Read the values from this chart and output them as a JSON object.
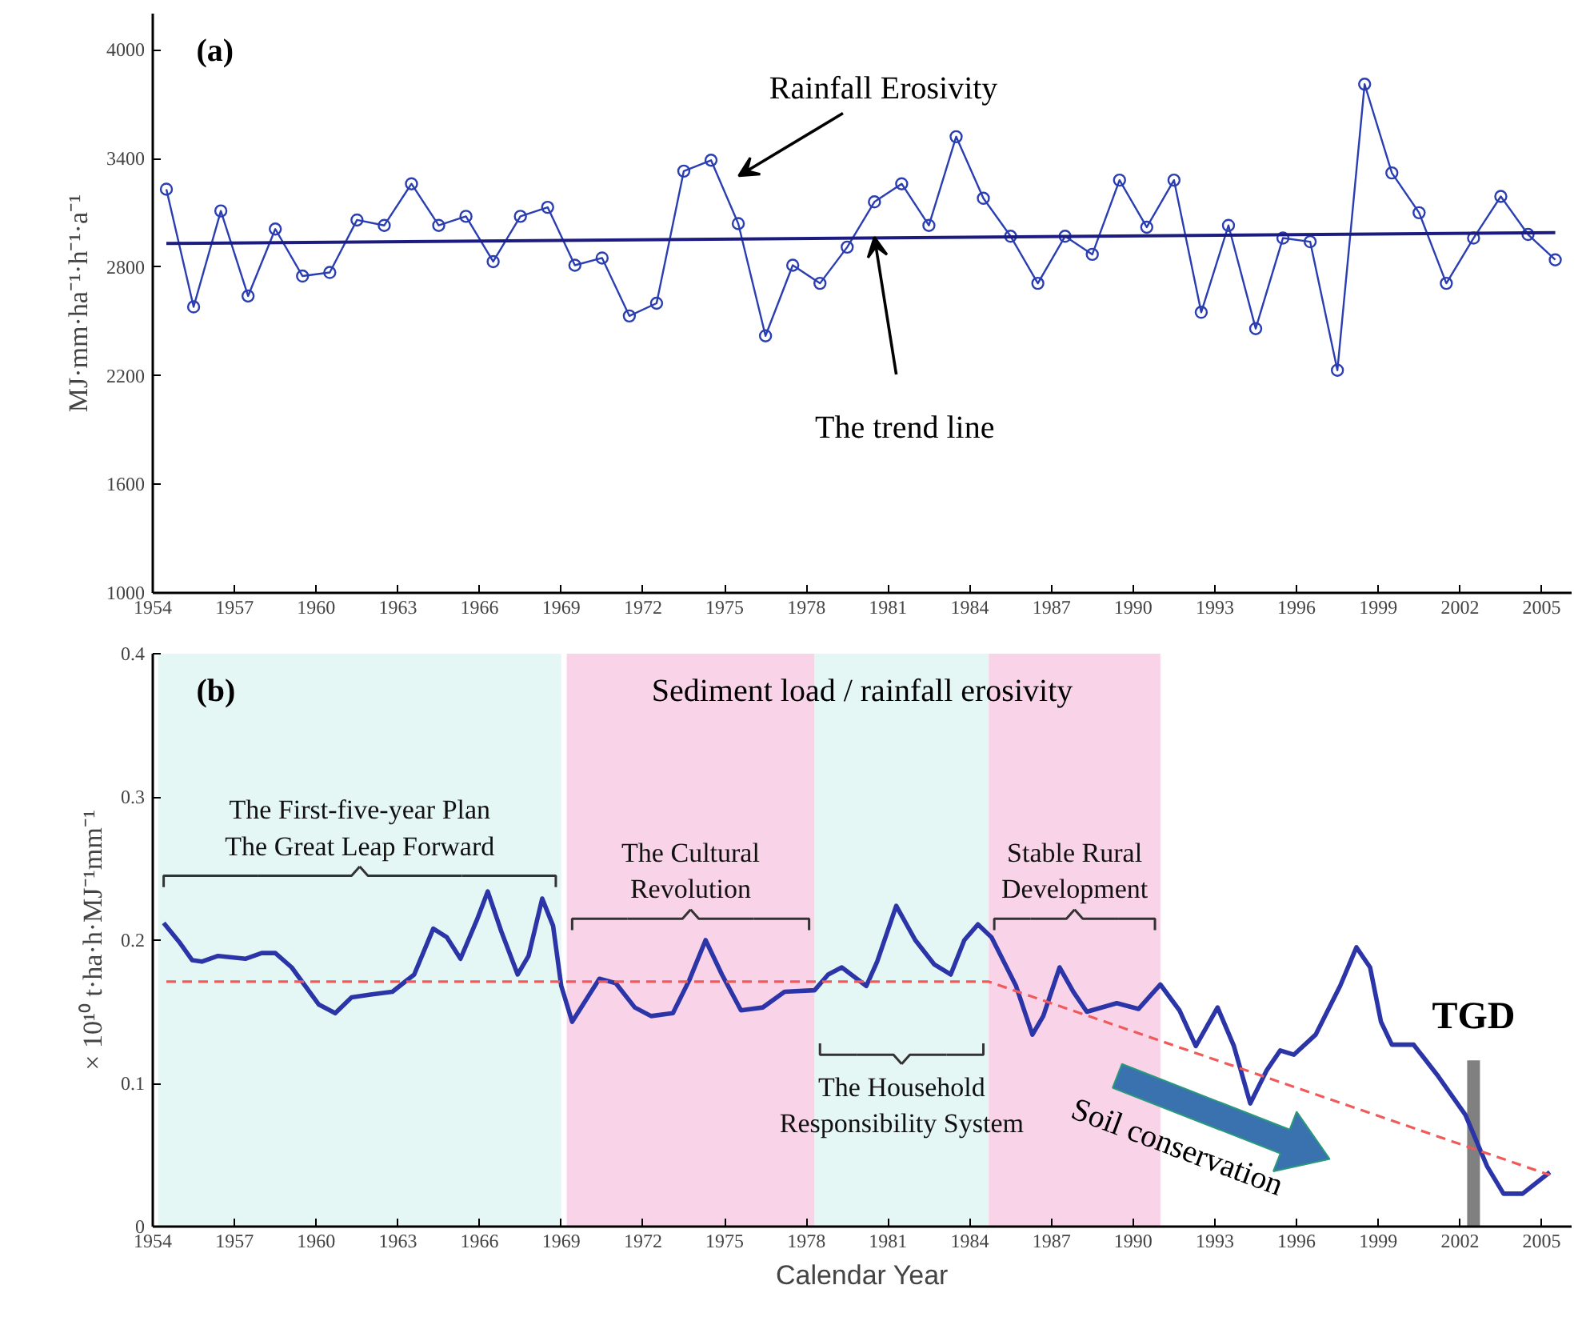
{
  "chart_data": [
    {
      "type": "line",
      "title": "(a)",
      "ylabel": "MJ·mm·ha⁻¹·h⁻¹·a⁻¹",
      "xlim": [
        1954,
        2006.1
      ],
      "ylim": [
        1000,
        4200
      ],
      "xticks": [
        1954,
        1957,
        1960,
        1963,
        1966,
        1969,
        1972,
        1975,
        1978,
        1981,
        1984,
        1987,
        1990,
        1993,
        1996,
        1999,
        2002,
        2005
      ],
      "yticks": [
        1000,
        1600,
        2200,
        2800,
        3400,
        4000
      ],
      "grid": false,
      "series": [
        {
          "marker": "circle",
          "color": "#2a3eb1",
          "x": [
            1954.5,
            1955.5,
            1956.5,
            1957.5,
            1958.5,
            1959.5,
            1960.5,
            1961.5,
            1962.5,
            1963.5,
            1964.5,
            1965.5,
            1966.5,
            1967.5,
            1968.5,
            1969.5,
            1970.5,
            1971.5,
            1972.5,
            1973.5,
            1974.5,
            1975.5,
            1976.5,
            1977.5,
            1978.5,
            1979.5,
            1980.5,
            1981.5,
            1982.5,
            1983.5,
            1984.5,
            1985.5,
            1986.5,
            1987.5,
            1988.5,
            1989.5,
            1990.5,
            1991.5,
            1992.5,
            1993.5,
            1994.5,
            1995.5,
            1996.5,
            1997.5,
            1998.5,
            1999.5,
            2000.5,
            2001.5,
            2002.5,
            2003.5,
            2004.5,
            2005.5
          ],
          "values": [
            3230,
            2580,
            3110,
            2640,
            3010,
            2750,
            2770,
            3060,
            3030,
            3260,
            3030,
            3080,
            2830,
            3080,
            3130,
            2810,
            2850,
            2530,
            2600,
            3330,
            3390,
            3040,
            2420,
            2810,
            2710,
            2910,
            3160,
            3260,
            3030,
            3520,
            3180,
            2970,
            2710,
            2970,
            2870,
            3280,
            3020,
            3280,
            2550,
            3030,
            2460,
            2960,
            2940,
            2230,
            3810,
            3320,
            3100,
            2710,
            2960,
            3190,
            2980,
            2840
          ]
        },
        {
          "marker": "none",
          "color": "#1c1c80",
          "x": [
            1954.5,
            2005.5
          ],
          "values": [
            2930,
            2990
          ]
        }
      ],
      "annotations": [
        "Rainfall Erosivity",
        {
          "text": "The trend line",
          "x": 1980.5,
          "y": 2965
        }
      ]
    },
    {
      "type": "line",
      "title": "(b)",
      "subtitle": "Sediment load / rainfall erosivity",
      "xlabel": "Calendar Year",
      "ylabel": "× 10¹⁰ t·ha·h·MJ⁻¹mm⁻¹",
      "xlim": [
        1954,
        2006.1
      ],
      "ylim": [
        0,
        0.4
      ],
      "xticks": [
        1954,
        1957,
        1960,
        1963,
        1966,
        1969,
        1972,
        1975,
        1978,
        1981,
        1984,
        1987,
        1990,
        1993,
        1996,
        1999,
        2002,
        2005
      ],
      "yticks": [
        0,
        0.1,
        0.2,
        0.3,
        0.4
      ],
      "grid": false,
      "series": [
        {
          "color": "#2b35a8",
          "x": [
            1954.4,
            1955.0,
            1955.45,
            1955.8,
            1956.4,
            1957.4,
            1958.0,
            1958.5,
            1959.1,
            1960.1,
            1960.7,
            1961.3,
            1962.0,
            1962.8,
            1963.6,
            1964.3,
            1964.8,
            1965.3,
            1965.9,
            1966.3,
            1966.8,
            1967.4,
            1967.8,
            1968.3,
            1968.7,
            1969.0,
            1969.4,
            1969.8,
            1970.4,
            1971.0,
            1971.7,
            1972.3,
            1973.1,
            1973.7,
            1974.3,
            1974.9,
            1975.6,
            1976.4,
            1977.2,
            1978.3,
            1978.8,
            1979.3,
            1980.2,
            1980.6,
            1981.3,
            1982.0,
            1982.7,
            1983.3,
            1983.8,
            1984.3,
            1984.8,
            1985.7,
            1986.3,
            1986.7,
            1987.3,
            1987.8,
            1988.3,
            1989.4,
            1990.2,
            1991.0,
            1991.7,
            1992.3,
            1993.1,
            1993.7,
            1994.3,
            1994.9,
            1995.4,
            1995.9,
            1996.7,
            1997.6,
            1998.2,
            1998.7,
            1999.1,
            1999.5,
            2000.3,
            2001.2,
            2002.2,
            2003.0,
            2003.6,
            2004.3,
            2005.3
          ],
          "values": [
            0.212,
            0.198,
            0.186,
            0.185,
            0.189,
            0.187,
            0.191,
            0.191,
            0.181,
            0.155,
            0.149,
            0.16,
            0.162,
            0.164,
            0.176,
            0.208,
            0.202,
            0.187,
            0.214,
            0.234,
            0.206,
            0.176,
            0.189,
            0.229,
            0.21,
            0.168,
            0.143,
            0.155,
            0.173,
            0.17,
            0.153,
            0.147,
            0.149,
            0.172,
            0.2,
            0.176,
            0.151,
            0.153,
            0.164,
            0.165,
            0.176,
            0.181,
            0.168,
            0.185,
            0.224,
            0.2,
            0.183,
            0.176,
            0.2,
            0.211,
            0.202,
            0.168,
            0.134,
            0.147,
            0.181,
            0.164,
            0.15,
            0.156,
            0.152,
            0.169,
            0.151,
            0.126,
            0.153,
            0.126,
            0.086,
            0.109,
            0.123,
            0.12,
            0.134,
            0.168,
            0.195,
            0.181,
            0.143,
            0.127,
            0.127,
            0.105,
            0.078,
            0.042,
            0.023,
            0.023,
            0.038
          ]
        },
        {
          "color": "#f05a5a",
          "line_style": "dashed",
          "x": [
            1954.5,
            1984.7,
            2005.3
          ],
          "values": [
            0.171,
            0.171,
            0.036
          ]
        }
      ],
      "bands": [
        {
          "axis": "x",
          "from": 1954.2,
          "to": 1969.0,
          "label": "The First-five-year Plan\nThe Great Leap Forward",
          "color": "#def5f1"
        },
        {
          "axis": "x",
          "from": 1969.2,
          "to": 1978.3,
          "label": "The Cultural\nRevolution",
          "color": "#f7c8e2"
        },
        {
          "axis": "x",
          "from": 1978.3,
          "to": 1984.7,
          "label": "The Household\nResponsibility System",
          "color": "#def5f1"
        },
        {
          "axis": "x",
          "from": 1984.7,
          "to": 1991.0,
          "label": "Stable Rural\nDevelopment",
          "color": "#f7c8e2"
        }
      ],
      "ref_lines": [
        {
          "axis": "x",
          "value": 2002.5,
          "label": "TGD",
          "color": "#808080"
        }
      ],
      "annotations": [
        "Soil conservation"
      ]
    }
  ]
}
